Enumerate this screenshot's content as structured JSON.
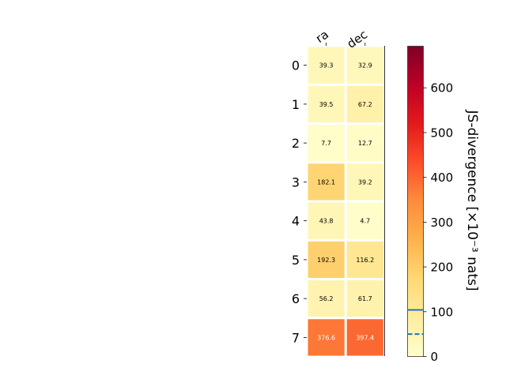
{
  "chart_data": {
    "type": "heatmap",
    "columns": [
      "ra",
      "dec"
    ],
    "rows": [
      "0",
      "1",
      "2",
      "3",
      "4",
      "5",
      "6",
      "7"
    ],
    "values": [
      [
        39.3,
        32.9
      ],
      [
        39.5,
        67.2
      ],
      [
        7.7,
        12.7
      ],
      [
        182.1,
        39.2
      ],
      [
        43.8,
        4.7
      ],
      [
        192.3,
        116.2
      ],
      [
        56.2,
        61.7
      ],
      [
        376.6,
        397.4
      ]
    ],
    "cell_labels": [
      [
        "39.3",
        "32.9"
      ],
      [
        "39.5",
        "67.2"
      ],
      [
        "7.7",
        "12.7"
      ],
      [
        "182.1",
        "39.2"
      ],
      [
        "43.8",
        "4.7"
      ],
      [
        "192.3",
        "116.2"
      ],
      [
        "56.2",
        "61.7"
      ],
      [
        "376.6",
        "397.4"
      ]
    ],
    "colorbar": {
      "label": "JS-divergence [×10⁻³ nats]",
      "range": [
        0,
        693
      ],
      "ticks": [
        0,
        100,
        200,
        300,
        400,
        500,
        600
      ],
      "tick_labels": [
        "0",
        "100",
        "200",
        "300",
        "400",
        "500",
        "600"
      ],
      "colormap": "YlOrRd",
      "reference_lines": [
        {
          "value": 104,
          "style": "solid",
          "color": "#1f77b4"
        },
        {
          "value": 50,
          "style": "dashed",
          "color": "#1f77b4"
        }
      ]
    }
  }
}
